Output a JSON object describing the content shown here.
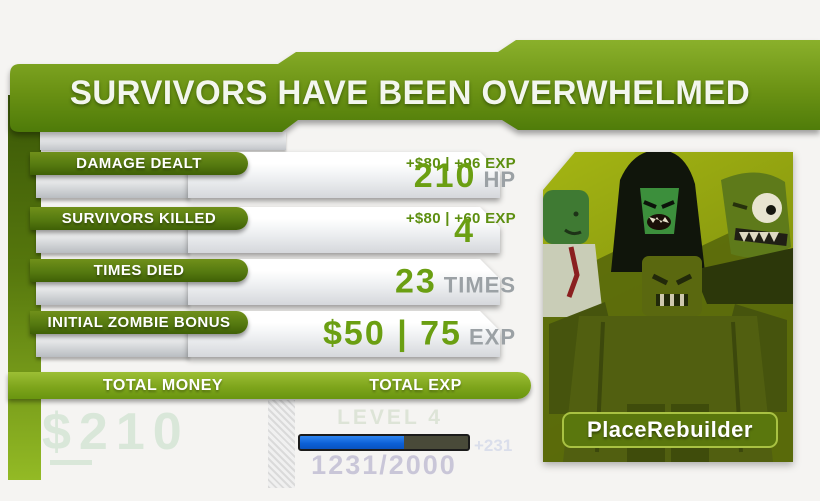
{
  "header": {
    "title": "SURVIVORS HAVE BEEN OVERWHELMED"
  },
  "stats": [
    {
      "label": "DAMAGE DEALT",
      "bonus": "+$80 | +96 EXP",
      "value": "210",
      "unit": "HP"
    },
    {
      "label": "SURVIVORS KILLED",
      "bonus": "+$80 | +60 EXP",
      "value": "4",
      "unit": ""
    },
    {
      "label": "TIMES DIED",
      "bonus": "",
      "value": "23",
      "unit": "TIMES"
    },
    {
      "label": "INITIAL ZOMBIE BONUS",
      "bonus": "",
      "value": "$50 | 75",
      "unit": "EXP"
    }
  ],
  "totals": {
    "money_label": "TOTAL MONEY",
    "exp_label": "TOTAL EXP",
    "money_value": "$210",
    "level_text": "LEVEL 4",
    "exp_text": "1231/2000",
    "exp_current": 1231,
    "exp_max": 2000,
    "exp_gain": "+231",
    "progress_percent": 62
  },
  "player": {
    "name": "PlaceRebuilder"
  },
  "colors": {
    "accent_green_bright": "#7ea51c",
    "accent_green_dark": "#3f6006",
    "value_green": "#6b9f12",
    "unit_gray": "#9ba1a5",
    "exp_bar_blue": "#0b5fd6",
    "exp_bar_track": "#494a39",
    "faint_money": "#d9e7d9",
    "faint_exp": "#c9c6d8",
    "background": "#f5f4f2"
  }
}
